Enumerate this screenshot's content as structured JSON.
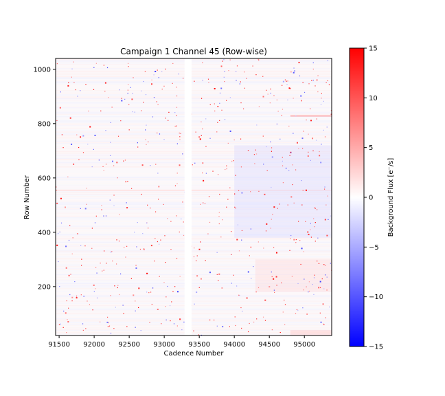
{
  "chart_data": {
    "type": "heatmap",
    "title": "Campaign 1 Channel 45 (Row-wise)",
    "xlabel": "Cadence Number",
    "ylabel": "Row Number",
    "xlim": [
      91450,
      95390
    ],
    "ylim": [
      20,
      1040
    ],
    "x_ticks": [
      91500,
      92000,
      92500,
      93000,
      93500,
      94000,
      94500,
      95000
    ],
    "y_ticks": [
      200,
      400,
      600,
      800,
      1000
    ],
    "data_gap": {
      "x": [
        93290,
        93390
      ]
    },
    "colorbar": {
      "label": "Background Flux [e$^-$/s]",
      "label_display": "Background Flux [e⁻/s]",
      "range": [
        -15,
        15
      ],
      "ticks": [
        -15,
        -10,
        -5,
        0,
        5,
        10,
        15
      ],
      "colors": {
        "low": "#0000ff",
        "mid": "#ffffff",
        "high": "#ff0000"
      }
    },
    "features": [
      {
        "kind": "row_streak",
        "row": 828,
        "x": [
          94800,
          95390
        ],
        "value": 7
      },
      {
        "kind": "row_streak",
        "row": 553,
        "x": [
          91450,
          95390
        ],
        "value": 2
      },
      {
        "kind": "row_band",
        "rows": [
          180,
          300
        ],
        "x": [
          94300,
          95390
        ],
        "value": 2.5
      },
      {
        "kind": "row_band",
        "rows": [
          20,
          40
        ],
        "x": [
          94800,
          95390
        ],
        "value": 4
      },
      {
        "kind": "row_band",
        "rows": [
          380,
          720
        ],
        "x": [
          94000,
          95390
        ],
        "value": -2.5
      }
    ]
  }
}
